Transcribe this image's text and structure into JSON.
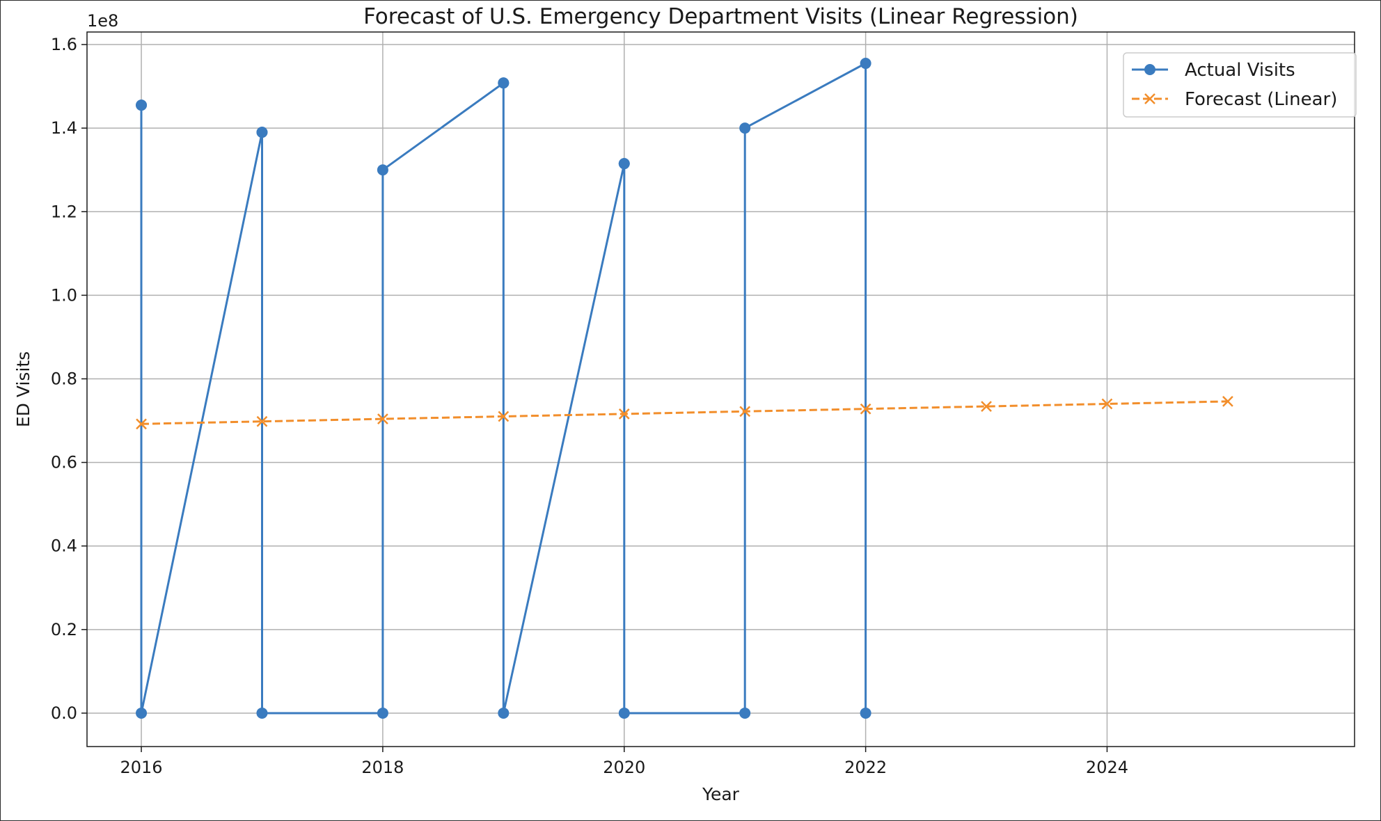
{
  "chart_data": {
    "type": "line",
    "title": "Forecast of U.S. Emergency Department Visits (Linear Regression)",
    "xlabel": "Year",
    "ylabel": "ED Visits",
    "y_offset_label": "1e8",
    "xlim": [
      2015.55,
      2026.05
    ],
    "ylim": [
      -0.08,
      1.63
    ],
    "x_ticks": [
      2016,
      2018,
      2020,
      2022,
      2024
    ],
    "y_ticks": [
      0.0,
      0.2,
      0.4,
      0.6,
      0.8,
      1.0,
      1.2,
      1.4,
      1.6
    ],
    "x_tick_labels": [
      "2016",
      "2018",
      "2020",
      "2022",
      "2024"
    ],
    "y_tick_labels": [
      "0.0",
      "0.2",
      "0.4",
      "0.6",
      "0.8",
      "1.0",
      "1.2",
      "1.4",
      "1.6"
    ],
    "grid": true,
    "legend_position": "top-right",
    "series": [
      {
        "name": "Actual Visits",
        "color": "#3a7bbf",
        "marker": "circle",
        "linestyle": "solid",
        "x": [
          2016,
          2016,
          2016,
          2017,
          2017,
          2017,
          2018,
          2018,
          2019,
          2019,
          2019,
          2020,
          2020,
          2020,
          2021,
          2021,
          2022,
          2022
        ],
        "y": [
          1.455,
          1.455,
          0.0,
          1.39,
          1.39,
          0.0,
          0.0,
          1.3,
          1.508,
          1.508,
          0.0,
          1.315,
          1.315,
          0.0,
          0.0,
          1.4,
          1.555,
          0.0
        ]
      },
      {
        "name": "Forecast (Linear)",
        "color": "#f28e2b",
        "marker": "x",
        "linestyle": "dashed",
        "x": [
          2016,
          2017,
          2018,
          2019,
          2020,
          2021,
          2022,
          2023,
          2024,
          2025
        ],
        "y": [
          0.692,
          0.698,
          0.704,
          0.71,
          0.716,
          0.722,
          0.728,
          0.734,
          0.74,
          0.746
        ]
      }
    ]
  }
}
